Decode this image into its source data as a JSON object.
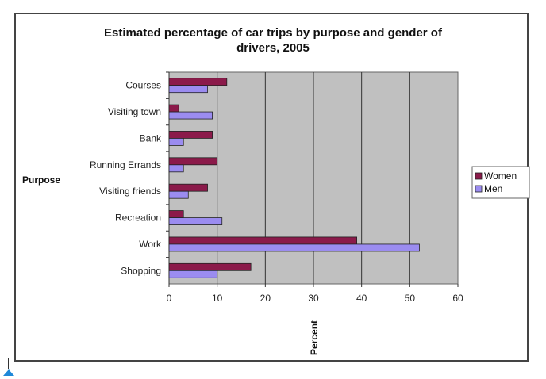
{
  "chart_data": {
    "type": "bar",
    "orientation": "horizontal",
    "title_line1": "Estimated percentage of car trips by purpose and gender of",
    "title_line2": "drivers, 2005",
    "ylabel": "Purpose",
    "xlabel": "Percent",
    "xlim": [
      0,
      60
    ],
    "xticks": [
      0,
      10,
      20,
      30,
      40,
      50,
      60
    ],
    "grid": true,
    "legend_position": "right",
    "categories": [
      "Courses",
      "Visiting town",
      "Bank",
      "Running Errands",
      "Visiting friends",
      "Recreation",
      "Work",
      "Shopping"
    ],
    "series": [
      {
        "name": "Women",
        "color": "#8b1a4a",
        "values": [
          12,
          2,
          9,
          10,
          8,
          3,
          39,
          17
        ]
      },
      {
        "name": "Men",
        "color": "#9b8cf0",
        "values": [
          8,
          9,
          3,
          3,
          4,
          11,
          52,
          10
        ]
      }
    ],
    "plot_background": "#c0c0c0"
  }
}
